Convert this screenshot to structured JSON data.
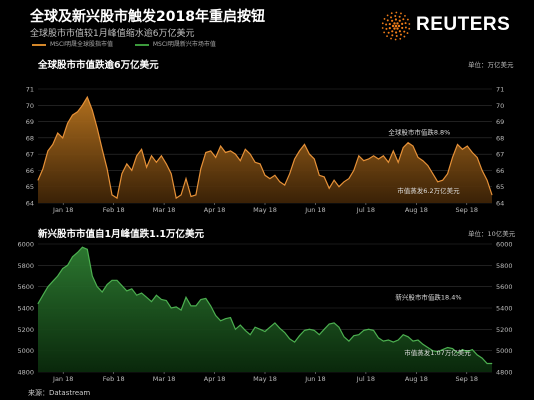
{
  "title": "全球及新兴股市触发2018年重启按钮",
  "subtitle": "全球股市市值较1月峰值缩水逾6万亿美元",
  "brand": {
    "name": "REUTERS"
  },
  "legend": [
    {
      "label": "MSCI明晟全球股指市值",
      "color": "#d4872a"
    },
    {
      "label": "MSCI明晟新兴市场市值",
      "color": "#3c9a3c"
    }
  ],
  "source": "来源：Datastream",
  "chart_data": [
    {
      "type": "area",
      "title": "全球股市市值跌逾6万亿美元",
      "unit_left": "",
      "unit_right": "单位：万亿美元",
      "ylim": [
        64,
        71
      ],
      "yticks": [
        64,
        65,
        66,
        67,
        68,
        69,
        70,
        71
      ],
      "xticks": [
        "Jan 18",
        "Feb 18",
        "Mar 18",
        "Apr 18",
        "May 18",
        "Jun 18",
        "Jul 18",
        "Aug 18",
        "Sep 18"
      ],
      "line_color": "#e69138",
      "fill_top": "#b8741f",
      "fill_bottom": "#3d2307",
      "annotations": [
        {
          "text": "全球股市市值跌8.8%",
          "pos": 0.84,
          "value": 68.2
        },
        {
          "text": "市值蒸发6.2万亿美元",
          "pos": 0.86,
          "value": 64.6
        }
      ],
      "values": [
        65.4,
        66.1,
        67.2,
        67.6,
        68.3,
        68.0,
        68.9,
        69.4,
        69.6,
        70.0,
        70.5,
        69.7,
        68.6,
        67.3,
        66.1,
        64.5,
        64.3,
        65.8,
        66.4,
        66.0,
        66.9,
        67.3,
        66.2,
        66.9,
        66.5,
        66.9,
        66.4,
        65.8,
        64.3,
        64.5,
        65.5,
        64.4,
        64.5,
        66.1,
        67.1,
        67.2,
        66.8,
        67.5,
        67.1,
        67.2,
        67.0,
        66.6,
        67.3,
        67.0,
        66.5,
        66.4,
        65.7,
        65.5,
        65.7,
        65.3,
        65.1,
        65.8,
        66.7,
        67.2,
        67.6,
        67.0,
        66.7,
        65.7,
        65.6,
        64.9,
        65.4,
        65.0,
        65.3,
        65.5,
        66.0,
        66.9,
        66.6,
        66.7,
        66.9,
        66.7,
        66.9,
        66.5,
        67.2,
        66.5,
        67.4,
        67.7,
        67.5,
        66.8,
        66.6,
        66.3,
        65.8,
        65.3,
        65.4,
        65.8,
        66.8,
        67.6,
        67.3,
        67.5,
        67.1,
        66.8,
        66.0,
        65.4,
        64.5
      ]
    },
    {
      "type": "area",
      "title": "新兴股市市值自1月峰值跌1.1万亿美元",
      "unit_left": "",
      "unit_right": "单位：10亿美元",
      "ylim": [
        4800,
        6000
      ],
      "yticks": [
        4800,
        5000,
        5200,
        5400,
        5600,
        5800,
        6000
      ],
      "xticks": [
        "Jan 18",
        "Feb 18",
        "Mar 18",
        "Apr 18",
        "May 18",
        "Jun 18",
        "Jul 18",
        "Aug 18",
        "Sep 18"
      ],
      "line_color": "#4caf50",
      "fill_top": "#2e7d32",
      "fill_bottom": "#0a2a0c",
      "annotations": [
        {
          "text": "新兴股市市值跌18.4%",
          "pos": 0.86,
          "value": 5480
        },
        {
          "text": "市值蒸发1.07万亿美元",
          "pos": 0.88,
          "value": 4960
        }
      ],
      "values": [
        5440,
        5520,
        5600,
        5650,
        5700,
        5770,
        5800,
        5880,
        5920,
        5970,
        5950,
        5700,
        5600,
        5550,
        5620,
        5660,
        5660,
        5610,
        5560,
        5580,
        5520,
        5540,
        5500,
        5460,
        5520,
        5480,
        5470,
        5400,
        5410,
        5380,
        5500,
        5420,
        5420,
        5480,
        5490,
        5420,
        5330,
        5280,
        5300,
        5310,
        5200,
        5240,
        5190,
        5150,
        5220,
        5200,
        5180,
        5220,
        5260,
        5210,
        5170,
        5110,
        5080,
        5140,
        5190,
        5200,
        5190,
        5150,
        5200,
        5250,
        5260,
        5220,
        5130,
        5090,
        5140,
        5150,
        5190,
        5200,
        5190,
        5120,
        5090,
        5100,
        5080,
        5100,
        5150,
        5130,
        5090,
        5100,
        5060,
        5030,
        5000,
        4990,
        5010,
        5030,
        5020,
        4980,
        5010,
        4990,
        5010,
        4960,
        4930,
        4880,
        4880
      ]
    }
  ]
}
